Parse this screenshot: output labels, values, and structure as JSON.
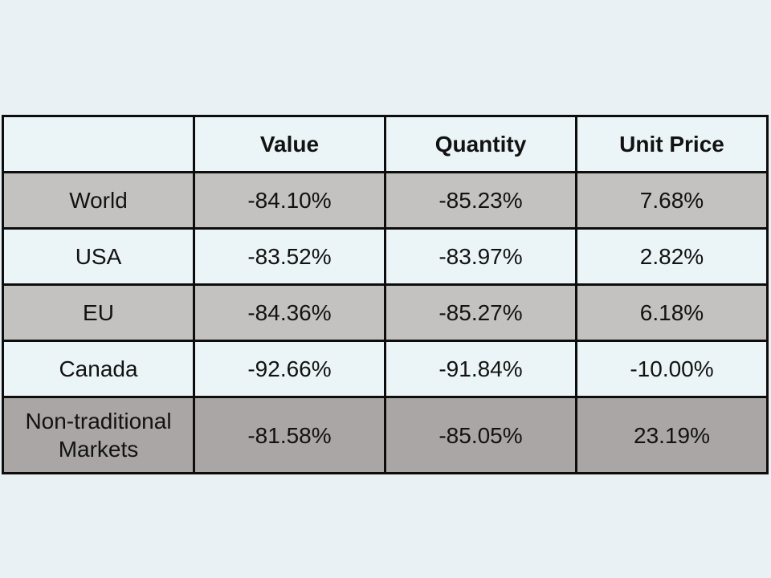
{
  "page": {
    "background_color": "#e9f1f5"
  },
  "colors": {
    "row_light": "#ebf4f7",
    "row_gray": "#c3c2c1",
    "row_dark_gray": "#a9a6a5",
    "border": "#0d0d0d",
    "text": "#121212"
  },
  "table": {
    "headers": [
      "",
      "Value",
      "Quantity",
      "Unit Price"
    ],
    "rows": [
      {
        "label": "World",
        "cells": [
          "-84.10%",
          "-85.23%",
          "7.68%"
        ]
      },
      {
        "label": "USA",
        "cells": [
          "-83.52%",
          "-83.97%",
          "2.82%"
        ]
      },
      {
        "label": "EU",
        "cells": [
          "-84.36%",
          "-85.27%",
          "6.18%"
        ]
      },
      {
        "label": "Canada",
        "cells": [
          "-92.66%",
          "-91.84%",
          "-10.00%"
        ]
      },
      {
        "label": "Non-traditional Markets",
        "cells": [
          "-81.58%",
          "-85.05%",
          "23.19%"
        ]
      }
    ]
  },
  "chart_data": {
    "type": "table",
    "title": "",
    "columns": [
      "",
      "Value",
      "Quantity",
      "Unit Price"
    ],
    "rows": [
      [
        "World",
        "-84.10%",
        "-85.23%",
        "7.68%"
      ],
      [
        "USA",
        "-83.52%",
        "-83.97%",
        "2.82%"
      ],
      [
        "EU",
        "-84.36%",
        "-85.27%",
        "6.18%"
      ],
      [
        "Canada",
        "-92.66%",
        "-91.84%",
        "-10.00%"
      ],
      [
        "Non-traditional Markets",
        "-81.58%",
        "-85.05%",
        "23.19%"
      ]
    ],
    "values_numeric_percent": {
      "World": {
        "value": -84.1,
        "quantity": -85.23,
        "unit_price": 7.68
      },
      "USA": {
        "value": -83.52,
        "quantity": -83.97,
        "unit_price": 2.82
      },
      "EU": {
        "value": -84.36,
        "quantity": -85.27,
        "unit_price": 6.18
      },
      "Canada": {
        "value": -92.66,
        "quantity": -91.84,
        "unit_price": -10.0
      },
      "Non-traditional Markets": {
        "value": -81.58,
        "quantity": -85.05,
        "unit_price": 23.19
      }
    },
    "layout_hints": {
      "header_row_shaded": false,
      "banded_rows": true,
      "last_row_darker": true,
      "grid": true
    }
  }
}
